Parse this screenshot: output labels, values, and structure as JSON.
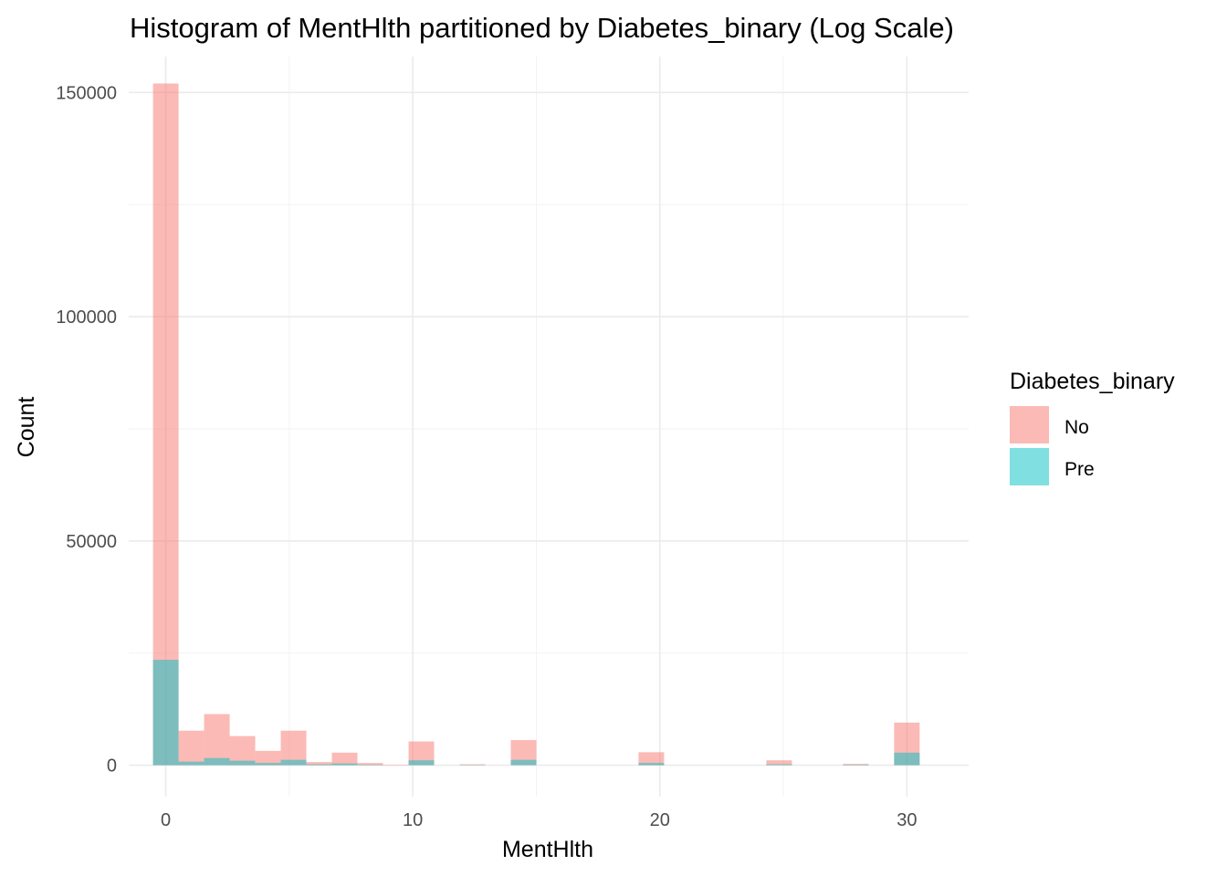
{
  "chart_data": {
    "type": "bar",
    "title": "Histogram of MentHlth partitioned by Diabetes_binary (Log Scale)",
    "xlabel": "MentHlth",
    "ylabel": "Count",
    "xlim": [
      -1.5,
      32.5
    ],
    "ylim": [
      -7000,
      158000
    ],
    "x_ticks": [
      0,
      10,
      20,
      30
    ],
    "y_ticks": [
      0,
      50000,
      100000,
      150000
    ],
    "grid": true,
    "bin_width": 1.034,
    "bin_centers": [
      0,
      1.034,
      2.069,
      3.103,
      4.138,
      5.172,
      6.207,
      7.241,
      8.276,
      9.31,
      10.345,
      11.379,
      12.414,
      13.448,
      14.483,
      15.517,
      16.552,
      17.586,
      18.621,
      19.655,
      20.69,
      21.724,
      22.759,
      23.793,
      24.828,
      25.862,
      26.897,
      27.931,
      28.966,
      30
    ],
    "legend": {
      "title": "Diabetes_binary",
      "position": "right"
    },
    "series": [
      {
        "name": "No",
        "color": "#F8766D",
        "values": [
          152000,
          7700,
          11400,
          6500,
          3200,
          7700,
          700,
          2800,
          500,
          100,
          5300,
          0,
          200,
          0,
          5600,
          0,
          0,
          0,
          0,
          2900,
          0,
          0,
          0,
          0,
          1100,
          0,
          0,
          300,
          0,
          9500
        ]
      },
      {
        "name": "Pre",
        "color": "#00BFC4",
        "values": [
          23500,
          800,
          1600,
          1000,
          500,
          1200,
          200,
          400,
          100,
          0,
          1100,
          0,
          50,
          0,
          1200,
          0,
          0,
          0,
          0,
          500,
          0,
          0,
          0,
          0,
          200,
          0,
          0,
          100,
          0,
          2800
        ]
      }
    ]
  }
}
